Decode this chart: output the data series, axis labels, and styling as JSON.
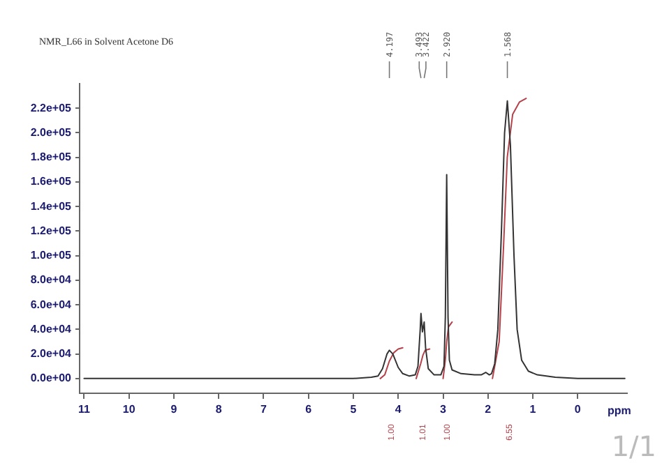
{
  "chart_data": {
    "type": "line",
    "title": "NMR_L66 in Solvent Acetone D6",
    "xlabel": "ppm",
    "xlim": [
      11.1,
      -1.1
    ],
    "xticks": [
      11,
      10,
      9,
      8,
      7,
      6,
      5,
      4,
      3,
      2,
      1,
      0
    ],
    "ylim": [
      -12000,
      240000
    ],
    "yticks": [
      {
        "value": 0,
        "label": "0.0e+00"
      },
      {
        "value": 20000,
        "label": "2.0e+04"
      },
      {
        "value": 40000,
        "label": "4.0e+04"
      },
      {
        "value": 60000,
        "label": "6.0e+04"
      },
      {
        "value": 80000,
        "label": "8.0e+04"
      },
      {
        "value": 100000,
        "label": "1.0e+05"
      },
      {
        "value": 120000,
        "label": "1.2e+05"
      },
      {
        "value": 140000,
        "label": "1.4e+05"
      },
      {
        "value": 160000,
        "label": "1.6e+05"
      },
      {
        "value": 180000,
        "label": "1.8e+05"
      },
      {
        "value": 200000,
        "label": "2.0e+05"
      },
      {
        "value": 220000,
        "label": "2.2e+05"
      }
    ],
    "grid": false,
    "legend": false,
    "marker": "none",
    "line_style": "solid",
    "series": [
      {
        "color": "#333333",
        "x": [
          11,
          8,
          5,
          4.6,
          4.45,
          4.35,
          4.25,
          4.197,
          4.12,
          4.0,
          3.9,
          3.75,
          3.62,
          3.56,
          3.51,
          3.493,
          3.46,
          3.422,
          3.39,
          3.33,
          3.2,
          3.05,
          2.98,
          2.95,
          2.92,
          2.89,
          2.86,
          2.8,
          2.6,
          2.3,
          2.15,
          2.05,
          1.97,
          1.92,
          1.85,
          1.78,
          1.7,
          1.63,
          1.568,
          1.5,
          1.42,
          1.35,
          1.25,
          1.1,
          0.9,
          0.5,
          0,
          -1.05
        ],
        "values": [
          0,
          0,
          0,
          1000,
          2000,
          8000,
          20000,
          23000,
          20000,
          9000,
          4000,
          2000,
          3000,
          10000,
          40000,
          53000,
          38000,
          46000,
          25000,
          8000,
          3000,
          3000,
          10000,
          50000,
          166000,
          50000,
          15000,
          7000,
          4000,
          3000,
          3000,
          5000,
          3000,
          4000,
          12000,
          40000,
          120000,
          200000,
          226000,
          190000,
          100000,
          40000,
          15000,
          6000,
          3000,
          1000,
          0,
          0
        ]
      },
      {
        "color": "#b5424a",
        "x": [
          4.4,
          4.3,
          4.2,
          4.1,
          4.0,
          3.9,
          3.75,
          3.6,
          3.5,
          3.45,
          3.4,
          3.3,
          3.1,
          3.0,
          2.95,
          2.92,
          2.88,
          2.8,
          2.3,
          1.9,
          1.75,
          1.65,
          1.57,
          1.45,
          1.3,
          1.15
        ],
        "values": [
          0,
          3000,
          14000,
          21000,
          24000,
          25000,
          null,
          0,
          12000,
          19000,
          23000,
          24000,
          null,
          0,
          15000,
          30000,
          42000,
          46000,
          null,
          0,
          30000,
          110000,
          180000,
          215000,
          225000,
          228000
        ]
      }
    ],
    "x2lim": [
      11.1,
      -1.1
    ],
    "x2ticks": [
      {
        "value": 4.197,
        "label": "4.197"
      },
      {
        "value": 3.493,
        "label": "3.493"
      },
      {
        "value": 3.422,
        "label": "3.422"
      },
      {
        "value": 2.92,
        "label": "2.920"
      },
      {
        "value": 1.568,
        "label": "1.568"
      }
    ],
    "annotations": [
      "1.00",
      "1.01",
      "1.00",
      "6.55",
      "1/1"
    ]
  }
}
